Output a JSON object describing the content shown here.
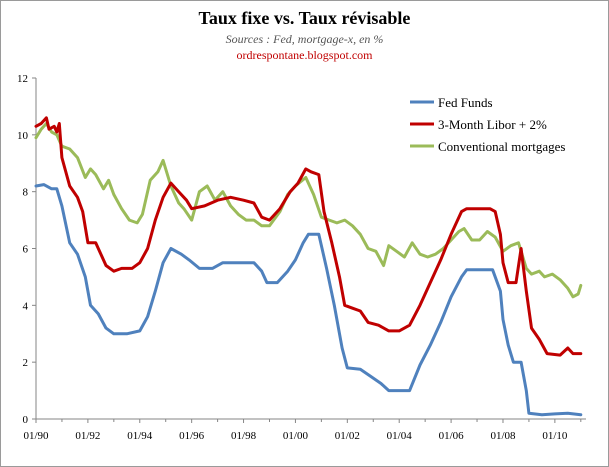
{
  "header": {
    "title": "Taux fixe vs. Taux révisable",
    "subtitle": "Sources : Fed, mortgage-x, en %",
    "source": "ordrespontane.blogspot.com"
  },
  "colors": {
    "fed": "#4f81bd",
    "libor": "#c00000",
    "conv": "#9bbb59"
  },
  "chart_data": {
    "type": "line",
    "title": "Taux fixe vs. Taux révisable",
    "subtitle": "Sources : Fed, mortgage-x, en %",
    "xlim": [
      1990,
      2011.2
    ],
    "ylim": [
      0,
      12
    ],
    "x_tick_labels": [
      "01/90",
      "01/92",
      "01/94",
      "01/96",
      "01/98",
      "01/00",
      "01/02",
      "01/04",
      "01/06",
      "01/08",
      "01/10"
    ],
    "x_tick_values": [
      1990,
      1992,
      1994,
      1996,
      1998,
      2000,
      2002,
      2004,
      2006,
      2008,
      2010
    ],
    "y_ticks": [
      0,
      2,
      4,
      6,
      8,
      10,
      12
    ],
    "legend_position": "top-right",
    "grid": false,
    "series": [
      {
        "name": "Fed Funds",
        "color_key": "fed",
        "points": [
          [
            1990.0,
            8.2
          ],
          [
            1990.3,
            8.25
          ],
          [
            1990.6,
            8.1
          ],
          [
            1990.8,
            8.1
          ],
          [
            1991.0,
            7.5
          ],
          [
            1991.3,
            6.2
          ],
          [
            1991.6,
            5.8
          ],
          [
            1991.9,
            5.0
          ],
          [
            1992.1,
            4.0
          ],
          [
            1992.4,
            3.7
          ],
          [
            1992.7,
            3.2
          ],
          [
            1993.0,
            3.0
          ],
          [
            1993.5,
            3.0
          ],
          [
            1994.0,
            3.1
          ],
          [
            1994.3,
            3.6
          ],
          [
            1994.6,
            4.5
          ],
          [
            1994.9,
            5.5
          ],
          [
            1995.2,
            6.0
          ],
          [
            1995.6,
            5.8
          ],
          [
            1995.9,
            5.6
          ],
          [
            1996.3,
            5.3
          ],
          [
            1996.8,
            5.3
          ],
          [
            1997.2,
            5.5
          ],
          [
            1997.6,
            5.5
          ],
          [
            1998.0,
            5.5
          ],
          [
            1998.4,
            5.5
          ],
          [
            1998.7,
            5.2
          ],
          [
            1998.9,
            4.8
          ],
          [
            1999.3,
            4.8
          ],
          [
            1999.7,
            5.2
          ],
          [
            2000.0,
            5.6
          ],
          [
            2000.3,
            6.2
          ],
          [
            2000.5,
            6.5
          ],
          [
            2000.9,
            6.5
          ],
          [
            2001.2,
            5.3
          ],
          [
            2001.5,
            4.0
          ],
          [
            2001.8,
            2.5
          ],
          [
            2002.0,
            1.8
          ],
          [
            2002.5,
            1.75
          ],
          [
            2002.9,
            1.5
          ],
          [
            2003.3,
            1.25
          ],
          [
            2003.6,
            1.0
          ],
          [
            2004.4,
            1.0
          ],
          [
            2004.8,
            1.9
          ],
          [
            2005.2,
            2.6
          ],
          [
            2005.6,
            3.4
          ],
          [
            2006.0,
            4.3
          ],
          [
            2006.4,
            5.0
          ],
          [
            2006.6,
            5.25
          ],
          [
            2007.6,
            5.25
          ],
          [
            2007.9,
            4.5
          ],
          [
            2008.0,
            3.5
          ],
          [
            2008.2,
            2.6
          ],
          [
            2008.4,
            2.0
          ],
          [
            2008.7,
            2.0
          ],
          [
            2008.9,
            1.0
          ],
          [
            2009.0,
            0.2
          ],
          [
            2009.5,
            0.15
          ],
          [
            2010.0,
            0.18
          ],
          [
            2010.5,
            0.2
          ],
          [
            2011.0,
            0.15
          ]
        ]
      },
      {
        "name": "3-Month Libor + 2%",
        "color_key": "libor",
        "points": [
          [
            1990.0,
            10.3
          ],
          [
            1990.2,
            10.4
          ],
          [
            1990.4,
            10.6
          ],
          [
            1990.5,
            10.2
          ],
          [
            1990.7,
            10.3
          ],
          [
            1990.8,
            10.1
          ],
          [
            1990.9,
            10.4
          ],
          [
            1991.0,
            9.2
          ],
          [
            1991.3,
            8.2
          ],
          [
            1991.6,
            7.8
          ],
          [
            1991.8,
            7.3
          ],
          [
            1992.0,
            6.2
          ],
          [
            1992.3,
            6.2
          ],
          [
            1992.5,
            5.8
          ],
          [
            1992.7,
            5.4
          ],
          [
            1993.0,
            5.2
          ],
          [
            1993.3,
            5.3
          ],
          [
            1993.7,
            5.3
          ],
          [
            1994.0,
            5.5
          ],
          [
            1994.3,
            6.0
          ],
          [
            1994.6,
            7.0
          ],
          [
            1994.9,
            7.8
          ],
          [
            1995.2,
            8.3
          ],
          [
            1995.5,
            8.0
          ],
          [
            1995.8,
            7.7
          ],
          [
            1996.0,
            7.4
          ],
          [
            1996.5,
            7.5
          ],
          [
            1997.0,
            7.7
          ],
          [
            1997.5,
            7.8
          ],
          [
            1998.0,
            7.7
          ],
          [
            1998.4,
            7.6
          ],
          [
            1998.7,
            7.1
          ],
          [
            1999.0,
            7.0
          ],
          [
            1999.4,
            7.4
          ],
          [
            1999.8,
            8.0
          ],
          [
            2000.1,
            8.3
          ],
          [
            2000.4,
            8.8
          ],
          [
            2000.6,
            8.7
          ],
          [
            2000.9,
            8.6
          ],
          [
            2001.1,
            7.3
          ],
          [
            2001.4,
            6.2
          ],
          [
            2001.7,
            5.0
          ],
          [
            2001.9,
            4.0
          ],
          [
            2002.2,
            3.9
          ],
          [
            2002.5,
            3.8
          ],
          [
            2002.8,
            3.4
          ],
          [
            2003.2,
            3.3
          ],
          [
            2003.6,
            3.1
          ],
          [
            2004.0,
            3.1
          ],
          [
            2004.4,
            3.3
          ],
          [
            2004.8,
            4.0
          ],
          [
            2005.2,
            4.8
          ],
          [
            2005.6,
            5.6
          ],
          [
            2006.0,
            6.5
          ],
          [
            2006.4,
            7.3
          ],
          [
            2006.6,
            7.4
          ],
          [
            2007.5,
            7.4
          ],
          [
            2007.7,
            7.3
          ],
          [
            2007.9,
            6.5
          ],
          [
            2008.0,
            5.5
          ],
          [
            2008.2,
            4.8
          ],
          [
            2008.5,
            4.8
          ],
          [
            2008.7,
            6.0
          ],
          [
            2008.9,
            4.5
          ],
          [
            2009.1,
            3.2
          ],
          [
            2009.4,
            2.8
          ],
          [
            2009.7,
            2.3
          ],
          [
            2010.2,
            2.25
          ],
          [
            2010.5,
            2.5
          ],
          [
            2010.7,
            2.3
          ],
          [
            2011.0,
            2.3
          ]
        ]
      },
      {
        "name": "Conventional mortgages",
        "color_key": "conv",
        "points": [
          [
            1990.0,
            9.9
          ],
          [
            1990.2,
            10.2
          ],
          [
            1990.4,
            10.4
          ],
          [
            1990.6,
            10.1
          ],
          [
            1990.8,
            10.0
          ],
          [
            1991.0,
            9.6
          ],
          [
            1991.3,
            9.5
          ],
          [
            1991.6,
            9.2
          ],
          [
            1991.9,
            8.5
          ],
          [
            1992.1,
            8.8
          ],
          [
            1992.3,
            8.6
          ],
          [
            1992.6,
            8.1
          ],
          [
            1992.8,
            8.4
          ],
          [
            1993.0,
            7.9
          ],
          [
            1993.3,
            7.4
          ],
          [
            1993.6,
            7.0
          ],
          [
            1993.9,
            6.9
          ],
          [
            1994.1,
            7.2
          ],
          [
            1994.4,
            8.4
          ],
          [
            1994.7,
            8.7
          ],
          [
            1994.9,
            9.1
          ],
          [
            1995.2,
            8.2
          ],
          [
            1995.5,
            7.6
          ],
          [
            1995.7,
            7.4
          ],
          [
            1996.0,
            7.0
          ],
          [
            1996.3,
            8.0
          ],
          [
            1996.6,
            8.2
          ],
          [
            1996.9,
            7.7
          ],
          [
            1997.2,
            8.0
          ],
          [
            1997.5,
            7.5
          ],
          [
            1997.8,
            7.2
          ],
          [
            1998.1,
            7.0
          ],
          [
            1998.4,
            7.0
          ],
          [
            1998.7,
            6.8
          ],
          [
            1999.0,
            6.8
          ],
          [
            1999.4,
            7.3
          ],
          [
            1999.7,
            7.9
          ],
          [
            2000.0,
            8.2
          ],
          [
            2000.4,
            8.5
          ],
          [
            2000.7,
            7.9
          ],
          [
            2001.0,
            7.1
          ],
          [
            2001.3,
            7.0
          ],
          [
            2001.6,
            6.9
          ],
          [
            2001.9,
            7.0
          ],
          [
            2002.2,
            6.8
          ],
          [
            2002.5,
            6.5
          ],
          [
            2002.8,
            6.0
          ],
          [
            2003.1,
            5.9
          ],
          [
            2003.4,
            5.4
          ],
          [
            2003.6,
            6.1
          ],
          [
            2003.9,
            5.9
          ],
          [
            2004.2,
            5.7
          ],
          [
            2004.5,
            6.2
          ],
          [
            2004.8,
            5.8
          ],
          [
            2005.1,
            5.7
          ],
          [
            2005.4,
            5.8
          ],
          [
            2005.7,
            6.0
          ],
          [
            2006.0,
            6.3
          ],
          [
            2006.3,
            6.6
          ],
          [
            2006.5,
            6.7
          ],
          [
            2006.8,
            6.3
          ],
          [
            2007.1,
            6.3
          ],
          [
            2007.4,
            6.6
          ],
          [
            2007.7,
            6.4
          ],
          [
            2008.0,
            5.9
          ],
          [
            2008.3,
            6.1
          ],
          [
            2008.6,
            6.2
          ],
          [
            2008.9,
            5.3
          ],
          [
            2009.1,
            5.1
          ],
          [
            2009.4,
            5.2
          ],
          [
            2009.6,
            5.0
          ],
          [
            2009.9,
            5.1
          ],
          [
            2010.2,
            4.9
          ],
          [
            2010.5,
            4.6
          ],
          [
            2010.7,
            4.3
          ],
          [
            2010.9,
            4.4
          ],
          [
            2011.0,
            4.7
          ]
        ]
      }
    ]
  }
}
